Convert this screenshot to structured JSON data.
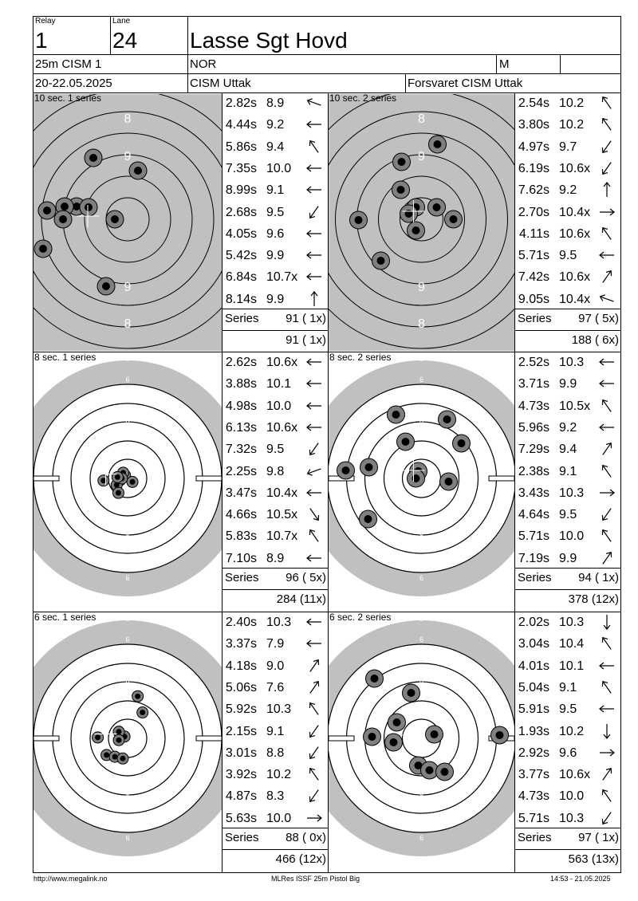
{
  "header": {
    "relay_label": "Relay",
    "relay": "1",
    "lane_label": "Lane",
    "lane": "24",
    "shooter_name": "Lasse Sgt Hovd",
    "match": "25m CISM 1",
    "nation": "NOR",
    "gender": "M",
    "dates": "20-22.05.2025",
    "event": "CISM Uttak",
    "club": "Forsvaret CISM Uttak"
  },
  "series": [
    {
      "title": "10 sec. 1 series",
      "shots": [
        {
          "time": "2.82s",
          "value": "8.9",
          "dir": "left-up"
        },
        {
          "time": "4.44s",
          "value": "9.2",
          "dir": "left"
        },
        {
          "time": "5.86s",
          "value": "9.4",
          "dir": "up-left"
        },
        {
          "time": "7.35s",
          "value": "10.0",
          "dir": "left"
        },
        {
          "time": "8.99s",
          "value": "9.1",
          "dir": "left"
        },
        {
          "time": "2.68s",
          "value": "9.5",
          "dir": "down-left"
        },
        {
          "time": "4.05s",
          "value": "9.6",
          "dir": "left"
        },
        {
          "time": "5.42s",
          "value": "9.9",
          "dir": "left"
        },
        {
          "time": "6.84s",
          "value": "10.7x",
          "dir": "left"
        },
        {
          "time": "8.14s",
          "value": "9.9",
          "dir": "up"
        }
      ],
      "series_label": "Series",
      "series_total": "91 ( 1x)",
      "running_total": "91 ( 1x)"
    },
    {
      "title": "10 sec. 2 series",
      "shots": [
        {
          "time": "2.54s",
          "value": "10.2",
          "dir": "up-left"
        },
        {
          "time": "3.80s",
          "value": "10.2",
          "dir": "up-left"
        },
        {
          "time": "4.97s",
          "value": "9.7",
          "dir": "down-left"
        },
        {
          "time": "6.19s",
          "value": "10.6x",
          "dir": "down-left"
        },
        {
          "time": "7.62s",
          "value": "9.2",
          "dir": "up"
        },
        {
          "time": "2.70s",
          "value": "10.4x",
          "dir": "right"
        },
        {
          "time": "4.11s",
          "value": "10.6x",
          "dir": "up-left"
        },
        {
          "time": "5.71s",
          "value": "9.5",
          "dir": "left"
        },
        {
          "time": "7.42s",
          "value": "10.6x",
          "dir": "up-right"
        },
        {
          "time": "9.05s",
          "value": "10.4x",
          "dir": "left-up"
        }
      ],
      "series_label": "Series",
      "series_total": "97 ( 5x)",
      "running_total": "188 ( 6x)"
    },
    {
      "title": "8 sec. 1 series",
      "shots": [
        {
          "time": "2.62s",
          "value": "10.6x",
          "dir": "left"
        },
        {
          "time": "3.88s",
          "value": "10.1",
          "dir": "left"
        },
        {
          "time": "4.98s",
          "value": "10.0",
          "dir": "left"
        },
        {
          "time": "6.13s",
          "value": "10.6x",
          "dir": "left"
        },
        {
          "time": "7.32s",
          "value": "9.5",
          "dir": "down-left"
        },
        {
          "time": "2.25s",
          "value": "9.8",
          "dir": "left-down"
        },
        {
          "time": "3.47s",
          "value": "10.4x",
          "dir": "left"
        },
        {
          "time": "4.66s",
          "value": "10.5x",
          "dir": "down-right"
        },
        {
          "time": "5.83s",
          "value": "10.7x",
          "dir": "up-left"
        },
        {
          "time": "7.10s",
          "value": "8.9",
          "dir": "left"
        }
      ],
      "series_label": "Series",
      "series_total": "96 ( 5x)",
      "running_total": "284 (11x)"
    },
    {
      "title": "8 sec. 2 series",
      "shots": [
        {
          "time": "2.52s",
          "value": "10.3",
          "dir": "left"
        },
        {
          "time": "3.71s",
          "value": "9.9",
          "dir": "left"
        },
        {
          "time": "4.73s",
          "value": "10.5x",
          "dir": "up-left"
        },
        {
          "time": "5.96s",
          "value": "9.2",
          "dir": "left"
        },
        {
          "time": "7.29s",
          "value": "9.4",
          "dir": "up-right"
        },
        {
          "time": "2.38s",
          "value": "9.1",
          "dir": "up-left"
        },
        {
          "time": "3.43s",
          "value": "10.3",
          "dir": "right"
        },
        {
          "time": "4.64s",
          "value": "9.5",
          "dir": "down-left"
        },
        {
          "time": "5.71s",
          "value": "10.0",
          "dir": "up-left"
        },
        {
          "time": "7.19s",
          "value": "9.9",
          "dir": "up-right"
        }
      ],
      "series_label": "Series",
      "series_total": "94 ( 1x)",
      "running_total": "378 (12x)"
    },
    {
      "title": "6 sec. 1 series",
      "shots": [
        {
          "time": "2.40s",
          "value": "10.3",
          "dir": "left"
        },
        {
          "time": "3.37s",
          "value": "7.9",
          "dir": "left"
        },
        {
          "time": "4.18s",
          "value": "9.0",
          "dir": "up-right"
        },
        {
          "time": "5.06s",
          "value": "7.6",
          "dir": "up-right"
        },
        {
          "time": "5.92s",
          "value": "10.3",
          "dir": "up-left"
        },
        {
          "time": "2.15s",
          "value": "9.1",
          "dir": "down-left"
        },
        {
          "time": "3.01s",
          "value": "8.8",
          "dir": "down-left"
        },
        {
          "time": "3.92s",
          "value": "10.2",
          "dir": "up-left"
        },
        {
          "time": "4.87s",
          "value": "8.3",
          "dir": "down-left"
        },
        {
          "time": "5.63s",
          "value": "10.0",
          "dir": "right"
        }
      ],
      "series_label": "Series",
      "series_total": "88 ( 0x)",
      "running_total": "466 (12x)"
    },
    {
      "title": "6 sec. 2 series",
      "shots": [
        {
          "time": "2.02s",
          "value": "10.3",
          "dir": "down"
        },
        {
          "time": "3.04s",
          "value": "10.4",
          "dir": "up-left"
        },
        {
          "time": "4.01s",
          "value": "10.1",
          "dir": "left"
        },
        {
          "time": "5.04s",
          "value": "9.1",
          "dir": "up-left"
        },
        {
          "time": "5.91s",
          "value": "9.5",
          "dir": "left"
        },
        {
          "time": "1.93s",
          "value": "10.2",
          "dir": "down"
        },
        {
          "time": "2.92s",
          "value": "9.6",
          "dir": "right"
        },
        {
          "time": "3.77s",
          "value": "10.6x",
          "dir": "up-right"
        },
        {
          "time": "4.73s",
          "value": "10.0",
          "dir": "up-left"
        },
        {
          "time": "5.71s",
          "value": "10.3",
          "dir": "down-left"
        }
      ],
      "series_label": "Series",
      "series_total": "97 ( 1x)",
      "running_total": "563 (13x)"
    }
  ],
  "target_labels": {
    "precision": [
      "8",
      "9",
      "9",
      "8"
    ],
    "rapid": [
      "5",
      "6",
      "7",
      "8",
      "8",
      "7",
      "6",
      "5"
    ]
  },
  "footer": {
    "url": "http://www.megalink.no",
    "program": "MLRes ISSF 25m Pistol Big",
    "timestamp": "14:53 - 21.05.2025"
  },
  "colors": {
    "target_bg": "#c0c0c0",
    "ring": "#000000",
    "shot_halo": "#808080",
    "shot_core": "#000000"
  }
}
